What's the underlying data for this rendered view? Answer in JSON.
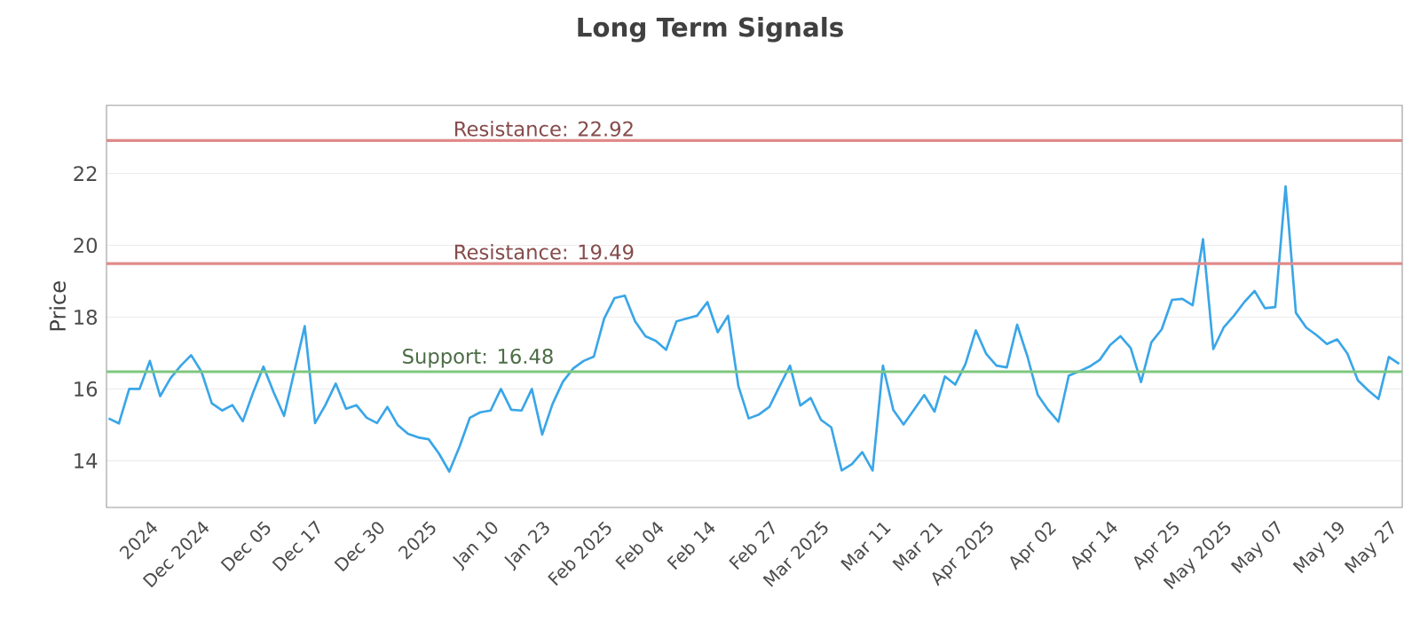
{
  "chart_data": {
    "type": "line",
    "title": "Long Term Signals",
    "ylabel": "Price",
    "categories": [
      null,
      null,
      null,
      null,
      "2024",
      null,
      null,
      null,
      null,
      "Dec 2024",
      null,
      null,
      null,
      null,
      null,
      "Dec 05",
      null,
      null,
      null,
      null,
      "Dec 17",
      null,
      null,
      null,
      null,
      null,
      "Dec 30",
      null,
      null,
      null,
      null,
      "2025",
      null,
      null,
      null,
      null,
      null,
      "Jan 10",
      null,
      null,
      null,
      null,
      "Jan 23",
      null,
      null,
      null,
      null,
      null,
      "Feb 2025",
      null,
      null,
      null,
      null,
      "Feb 04",
      null,
      null,
      null,
      null,
      "Feb 14",
      null,
      null,
      null,
      null,
      null,
      "Feb 27",
      null,
      null,
      null,
      null,
      "Mar 2025",
      null,
      null,
      null,
      null,
      null,
      "Mar 11",
      null,
      null,
      null,
      null,
      "Mar 21",
      null,
      null,
      null,
      null,
      "Apr 2025",
      null,
      null,
      null,
      null,
      null,
      "Apr 02",
      null,
      null,
      null,
      null,
      null,
      "Apr 14",
      null,
      null,
      null,
      null,
      null,
      "Apr 25",
      null,
      null,
      null,
      null,
      "May 2025",
      null,
      null,
      null,
      null,
      "May 07",
      null,
      null,
      null,
      null,
      null,
      "May 19",
      null,
      null,
      null,
      null,
      "May 27",
      null
    ],
    "series": [
      {
        "color": "#3aa6e8",
        "values": [
          15.18,
          15.04,
          16.0,
          16.0,
          16.78,
          15.8,
          16.3,
          16.65,
          16.94,
          16.48,
          15.6,
          15.4,
          15.55,
          15.1,
          15.9,
          16.62,
          15.9,
          15.25,
          16.5,
          17.75,
          15.05,
          15.55,
          16.15,
          15.45,
          15.55,
          15.2,
          15.05,
          15.5,
          15.0,
          14.75,
          14.65,
          14.6,
          14.2,
          13.7,
          14.4,
          15.2,
          15.35,
          15.4,
          16.0,
          15.42,
          15.4,
          16.0,
          14.73,
          15.58,
          16.2,
          16.57,
          16.78,
          16.9,
          17.96,
          18.53,
          18.6,
          17.88,
          17.47,
          17.34,
          17.09,
          17.88,
          17.96,
          18.04,
          18.42,
          17.58,
          18.04,
          16.08,
          15.18,
          15.29,
          15.5,
          16.08,
          16.65,
          15.54,
          15.75,
          15.14,
          14.93,
          13.73,
          13.91,
          14.24,
          13.73,
          16.65,
          15.42,
          15.01,
          15.42,
          15.83,
          15.37,
          16.35,
          16.12,
          16.7,
          17.63,
          16.98,
          16.65,
          16.6,
          17.79,
          16.9,
          15.83,
          15.42,
          15.09,
          16.37,
          16.49,
          16.62,
          16.81,
          17.22,
          17.47,
          17.14,
          16.19,
          17.3,
          17.66,
          18.48,
          18.51,
          18.33,
          20.17,
          17.11,
          17.71,
          18.04,
          18.42,
          18.73,
          18.25,
          18.28,
          21.64,
          18.12,
          17.71,
          17.5,
          17.25,
          17.38,
          16.98,
          16.24,
          15.96,
          15.72,
          16.89,
          16.7
        ]
      }
    ],
    "ylim": [
      12.7,
      23.9
    ],
    "yticks": [
      14,
      16,
      18,
      20,
      22
    ],
    "grid": "y",
    "marker": "none",
    "ref_lines": [
      {
        "axis": "y",
        "value": 22.92,
        "label": "Resistance: 22.92",
        "color": "#e08a8a"
      },
      {
        "axis": "y",
        "value": 19.49,
        "label": "Resistance: 19.49",
        "color": "#e08a8a"
      },
      {
        "axis": "y",
        "value": 16.48,
        "label": "Support: 16.48",
        "color": "#7fc77f"
      }
    ]
  }
}
